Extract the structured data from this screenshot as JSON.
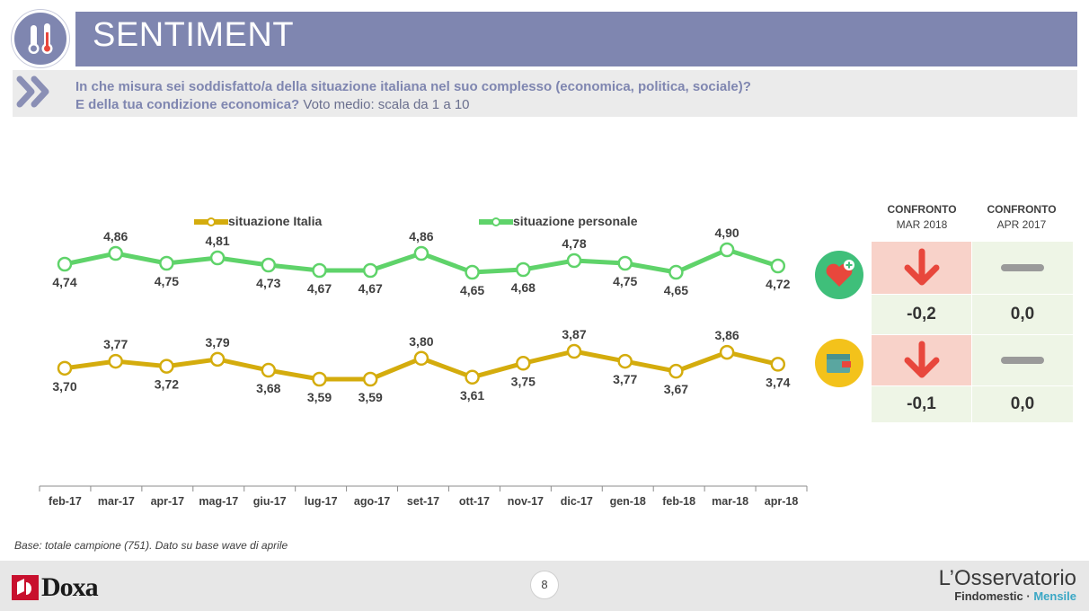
{
  "header": {
    "title": "SENTIMENT"
  },
  "question": {
    "line1": "In che misura sei soddisfatto/a della situazione italiana nel suo complesso (economica, politica, sociale)?",
    "line2_bold": "E della tua condizione economica?",
    "line2_plain": " Voto medio: scala da 1 a 10"
  },
  "colors": {
    "italia": "#d4ac0d",
    "personale": "#5fd36a",
    "header": "#7f86b0",
    "down_bg": "#f8d2c9",
    "neutral_bg": "#eef5e6",
    "arrow": "#e8473c"
  },
  "chart_data": {
    "type": "line",
    "categories": [
      "feb-17",
      "mar-17",
      "apr-17",
      "mag-17",
      "giu-17",
      "lug-17",
      "ago-17",
      "set-17",
      "ott-17",
      "nov-17",
      "dic-17",
      "gen-18",
      "feb-18",
      "mar-18",
      "apr-18"
    ],
    "series": [
      {
        "name": "situazione personale",
        "values": [
          4.74,
          4.86,
          4.75,
          4.81,
          4.73,
          4.67,
          4.67,
          4.86,
          4.65,
          4.68,
          4.78,
          4.75,
          4.65,
          4.9,
          4.72
        ],
        "labels": [
          "4,74",
          "4,86",
          "4,75",
          "4,81",
          "4,73",
          "4,67",
          "4,67",
          "4,86",
          "4,65",
          "4,68",
          "4,78",
          "4,75",
          "4,65",
          "4,90",
          "4,72"
        ]
      },
      {
        "name": "situazione Italia",
        "values": [
          3.7,
          3.77,
          3.72,
          3.79,
          3.68,
          3.59,
          3.59,
          3.8,
          3.61,
          3.75,
          3.87,
          3.77,
          3.67,
          3.86,
          3.74
        ],
        "labels": [
          "3,70",
          "3,77",
          "3,72",
          "3,79",
          "3,68",
          "3,59",
          "3,59",
          "3,80",
          "3,61",
          "3,75",
          "3,87",
          "3,77",
          "3,67",
          "3,86",
          "3,74"
        ]
      }
    ],
    "legend": [
      "situazione Italia",
      "situazione personale"
    ],
    "legend_position": "top"
  },
  "confronto": {
    "headers": [
      {
        "title": "CONFRONTO",
        "sub": "MAR 2018"
      },
      {
        "title": "CONFRONTO",
        "sub": "APR 2017"
      }
    ],
    "rows": [
      {
        "icon": "heart-plus-icon",
        "mar": "-0,2",
        "apr": "0,0",
        "mar_trend": "down",
        "apr_trend": "flat"
      },
      {
        "icon": "wallet-icon",
        "mar": "-0,1",
        "apr": "0,0",
        "mar_trend": "down",
        "apr_trend": "flat"
      }
    ]
  },
  "base_note": "Base: totale campione (751). Dato su base wave di aprile",
  "footer": {
    "page": "8",
    "doxa": "Doxa",
    "brand_line1": "L’Osservatorio",
    "brand_line2_a": "Findomestic · ",
    "brand_line2_b": "Mensile"
  }
}
